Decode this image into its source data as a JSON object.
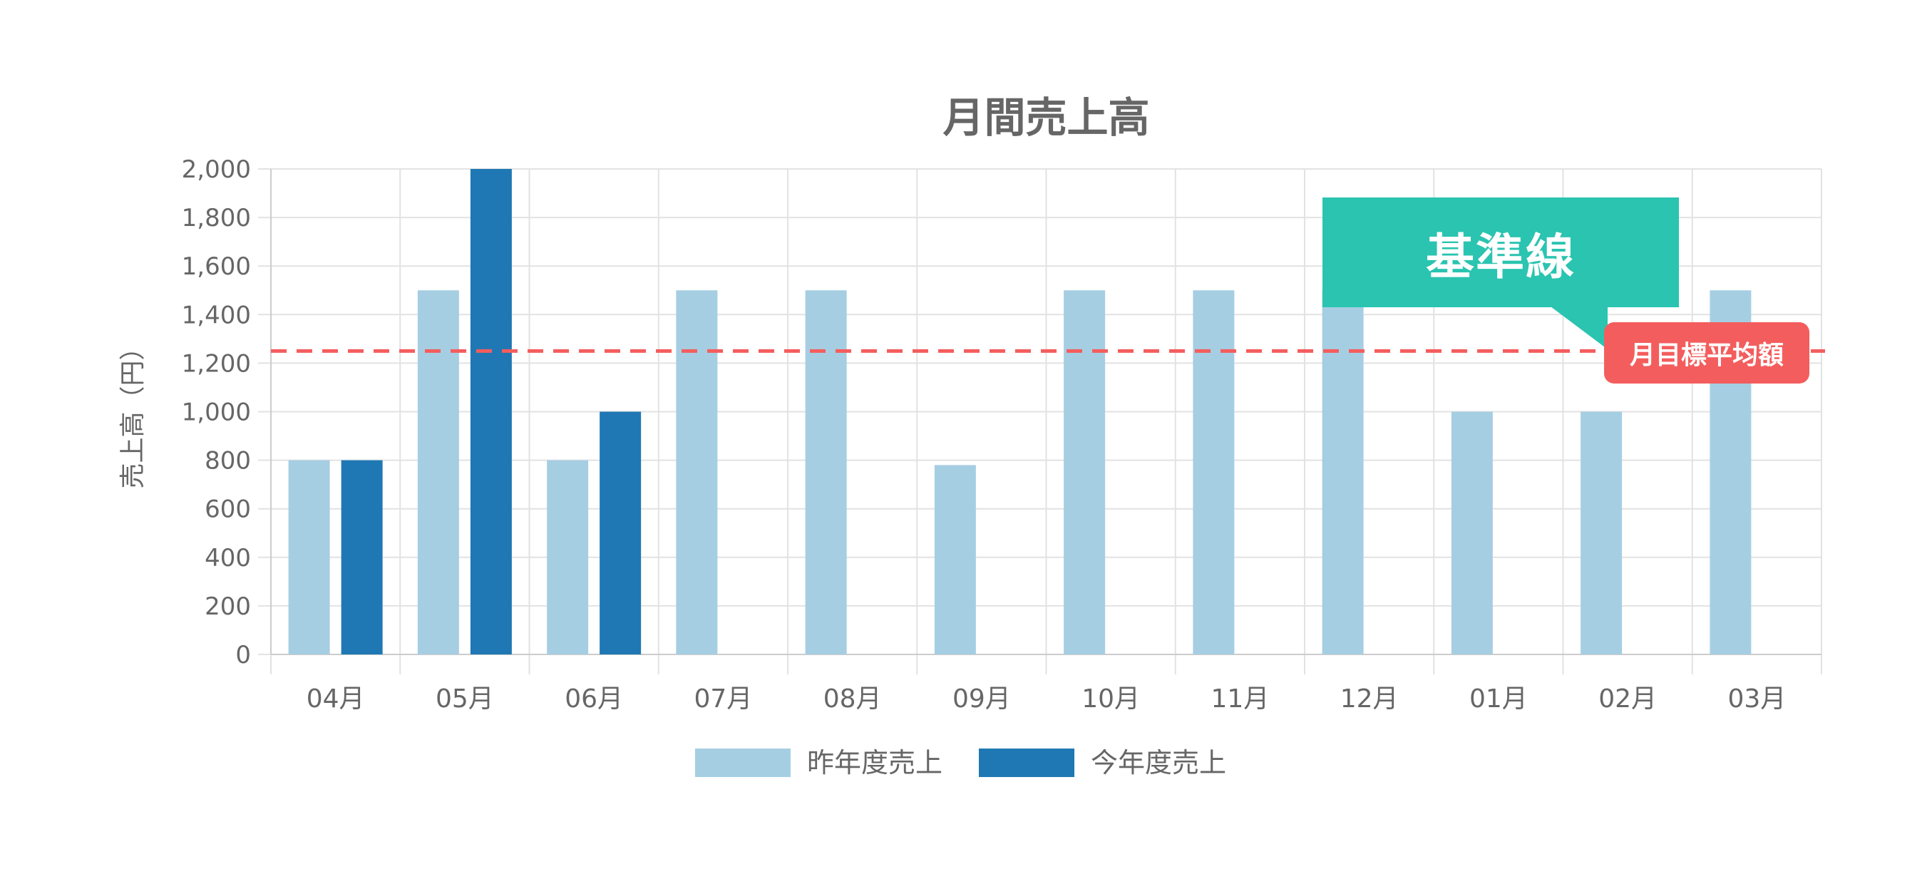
{
  "chart_data": {
    "type": "bar",
    "title": "月間売上高",
    "ylabel": "売上高（円）",
    "xlabel": "",
    "categories": [
      "04月",
      "05月",
      "06月",
      "07月",
      "08月",
      "09月",
      "10月",
      "11月",
      "12月",
      "01月",
      "02月",
      "03月"
    ],
    "series": [
      {
        "name": "昨年度売上",
        "color": "#a6cee3",
        "values": [
          800,
          1500,
          800,
          1500,
          1500,
          780,
          1500,
          1500,
          1500,
          1000,
          1000,
          1500
        ]
      },
      {
        "name": "今年度売上",
        "color": "#1f78b4",
        "values": [
          800,
          2000,
          1000,
          null,
          null,
          null,
          null,
          null,
          null,
          null,
          null,
          null
        ]
      }
    ],
    "ylim": [
      0,
      2000
    ],
    "yticks": [
      0,
      200,
      400,
      600,
      800,
      1000,
      1200,
      1400,
      1600,
      1800,
      2000
    ],
    "ytick_labels": [
      "0",
      "200",
      "400",
      "600",
      "800",
      "1,000",
      "1,200",
      "1,400",
      "1,600",
      "1,800",
      "2,000"
    ],
    "grid": true,
    "legend_position": "bottom",
    "reference_line": {
      "value": 1250,
      "label": "月目標平均額",
      "color": "#f45d5d",
      "style": "dashed"
    },
    "annotation": {
      "text": "基準線",
      "color": "#2ac4b0"
    }
  }
}
